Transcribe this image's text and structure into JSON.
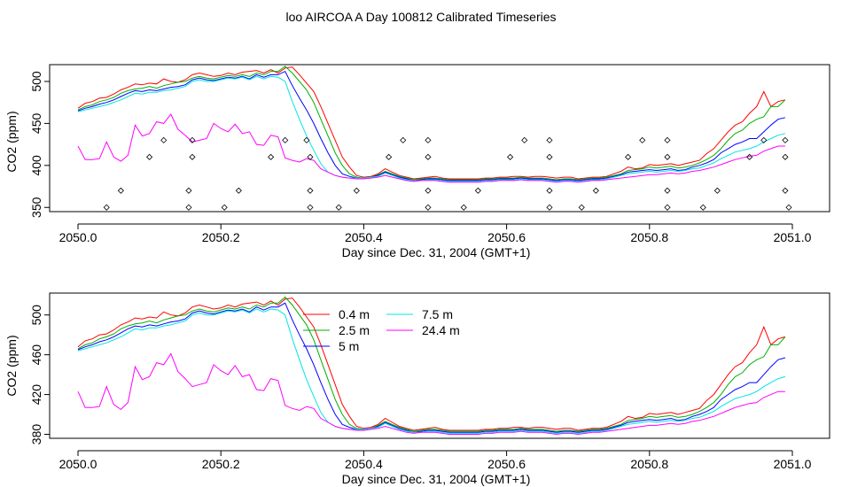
{
  "page_title": "loo AIRCOA A  Day 100812  Calibrated Timeseries",
  "series_colors": {
    "0.4 m": "#ff0000",
    "2.5 m": "#00b000",
    "5 m": "#0000ff",
    "7.5 m": "#00e5e5",
    "24.4 m": "#ff00ff"
  },
  "chart_data": [
    {
      "type": "line",
      "xlabel": "Day since Dec. 31, 2004 (GMT+1)",
      "ylabel": "CO2 (ppm)",
      "xlim": [
        2050.0,
        2051.0
      ],
      "xticks": [
        "2050.0",
        "2050.2",
        "2050.4",
        "2050.6",
        "2050.8",
        "2051.0"
      ],
      "ylim": [
        345,
        520
      ],
      "yticks": [
        "350",
        "400",
        "450",
        "500"
      ],
      "grid": false,
      "x": [
        2050.0,
        2050.01,
        2050.02,
        2050.03,
        2050.04,
        2050.05,
        2050.06,
        2050.07,
        2050.08,
        2050.09,
        2050.1,
        2050.11,
        2050.12,
        2050.13,
        2050.14,
        2050.15,
        2050.16,
        2050.17,
        2050.18,
        2050.19,
        2050.2,
        2050.21,
        2050.22,
        2050.23,
        2050.24,
        2050.25,
        2050.26,
        2050.27,
        2050.28,
        2050.29,
        2050.3,
        2050.31,
        2050.32,
        2050.33,
        2050.34,
        2050.35,
        2050.36,
        2050.37,
        2050.38,
        2050.39,
        2050.4,
        2050.41,
        2050.42,
        2050.43,
        2050.44,
        2050.45,
        2050.46,
        2050.47,
        2050.48,
        2050.49,
        2050.5,
        2050.51,
        2050.52,
        2050.53,
        2050.54,
        2050.55,
        2050.56,
        2050.57,
        2050.58,
        2050.59,
        2050.6,
        2050.61,
        2050.62,
        2050.63,
        2050.64,
        2050.65,
        2050.66,
        2050.67,
        2050.68,
        2050.69,
        2050.7,
        2050.71,
        2050.72,
        2050.73,
        2050.74,
        2050.75,
        2050.76,
        2050.77,
        2050.78,
        2050.79,
        2050.8,
        2050.81,
        2050.82,
        2050.83,
        2050.84,
        2050.85,
        2050.86,
        2050.87,
        2050.88,
        2050.89,
        2050.9,
        2050.91,
        2050.92,
        2050.93,
        2050.94,
        2050.95,
        2050.96,
        2050.97,
        2050.98,
        2050.99
      ],
      "series": [
        {
          "name": "0.4 m",
          "color": "#ff0000",
          "values": [
            468,
            474,
            476,
            480,
            481,
            485,
            490,
            493,
            497,
            496,
            498,
            497,
            503,
            500,
            499,
            502,
            508,
            510,
            508,
            506,
            507,
            510,
            508,
            511,
            512,
            513,
            510,
            514,
            510,
            516,
            517,
            508,
            498,
            488,
            470,
            450,
            430,
            410,
            398,
            388,
            386,
            387,
            390,
            396,
            392,
            388,
            386,
            384,
            385,
            386,
            387,
            385,
            384,
            384,
            384,
            384,
            384,
            385,
            385,
            386,
            386,
            387,
            387,
            386,
            387,
            387,
            386,
            385,
            386,
            386,
            384,
            385,
            386,
            386,
            387,
            390,
            393,
            398,
            396,
            397,
            401,
            400,
            401,
            402,
            400,
            402,
            404,
            406,
            414,
            420,
            430,
            440,
            448,
            452,
            462,
            470,
            488,
            470,
            476,
            478
          ]
        },
        {
          "name": "2.5 m",
          "color": "#00b000",
          "values": [
            466,
            470,
            472,
            476,
            478,
            481,
            486,
            489,
            491,
            492,
            494,
            492,
            495,
            497,
            499,
            500,
            504,
            506,
            504,
            503,
            505,
            507,
            506,
            508,
            506,
            510,
            508,
            512,
            512,
            518,
            510,
            500,
            490,
            475,
            455,
            435,
            415,
            400,
            390,
            386,
            385,
            386,
            389,
            393,
            390,
            387,
            385,
            383,
            384,
            385,
            385,
            384,
            383,
            383,
            383,
            383,
            383,
            384,
            384,
            385,
            385,
            385,
            386,
            385,
            385,
            385,
            384,
            383,
            384,
            384,
            383,
            384,
            385,
            385,
            386,
            388,
            390,
            394,
            395,
            396,
            398,
            397,
            398,
            399,
            397,
            398,
            400,
            403,
            407,
            412,
            420,
            430,
            438,
            442,
            450,
            455,
            458,
            470,
            470,
            478
          ]
        },
        {
          "name": "5 m",
          "color": "#0000ff",
          "values": [
            465,
            468,
            470,
            473,
            475,
            478,
            482,
            486,
            489,
            488,
            490,
            489,
            491,
            493,
            494,
            496,
            502,
            504,
            502,
            501,
            503,
            505,
            504,
            506,
            503,
            508,
            505,
            508,
            508,
            512,
            495,
            480,
            466,
            450,
            432,
            415,
            400,
            390,
            387,
            385,
            385,
            386,
            388,
            392,
            389,
            386,
            384,
            382,
            383,
            384,
            384,
            383,
            382,
            382,
            382,
            382,
            382,
            383,
            383,
            384,
            384,
            384,
            385,
            384,
            384,
            384,
            383,
            382,
            383,
            383,
            382,
            383,
            384,
            384,
            385,
            387,
            389,
            392,
            393,
            394,
            395,
            394,
            395,
            396,
            394,
            395,
            398,
            400,
            403,
            407,
            415,
            420,
            425,
            428,
            432,
            432,
            440,
            448,
            455,
            457
          ]
        },
        {
          "name": "7.5 m",
          "color": "#00e5e5",
          "values": [
            464,
            466,
            468,
            470,
            472,
            475,
            478,
            482,
            486,
            485,
            487,
            487,
            489,
            490,
            492,
            494,
            500,
            502,
            500,
            500,
            502,
            504,
            503,
            505,
            502,
            506,
            503,
            506,
            505,
            500,
            476,
            455,
            435,
            418,
            402,
            392,
            388,
            386,
            385,
            385,
            385,
            386,
            387,
            391,
            388,
            385,
            383,
            382,
            382,
            383,
            383,
            382,
            381,
            381,
            381,
            381,
            381,
            382,
            382,
            383,
            383,
            383,
            384,
            383,
            383,
            383,
            382,
            381,
            382,
            382,
            381,
            382,
            383,
            383,
            384,
            386,
            388,
            390,
            391,
            392,
            393,
            392,
            393,
            394,
            393,
            394,
            396,
            397,
            400,
            403,
            408,
            412,
            416,
            418,
            420,
            423,
            428,
            432,
            436,
            438
          ]
        },
        {
          "name": "24.4 m",
          "color": "#ff00ff",
          "values": [
            423,
            407,
            407,
            408,
            428,
            410,
            405,
            412,
            448,
            435,
            438,
            452,
            450,
            461,
            443,
            436,
            428,
            430,
            432,
            450,
            444,
            440,
            449,
            438,
            440,
            425,
            424,
            436,
            434,
            409,
            406,
            404,
            408,
            406,
            396,
            392,
            388,
            386,
            385,
            384,
            384,
            385,
            386,
            388,
            386,
            384,
            382,
            381,
            382,
            382,
            382,
            381,
            380,
            380,
            380,
            380,
            380,
            381,
            381,
            382,
            382,
            382,
            383,
            382,
            382,
            382,
            381,
            380,
            381,
            381,
            380,
            381,
            382,
            382,
            383,
            384,
            385,
            386,
            387,
            388,
            389,
            389,
            390,
            391,
            390,
            391,
            393,
            394,
            396,
            398,
            401,
            404,
            407,
            409,
            411,
            412,
            417,
            420,
            423,
            423
          ]
        }
      ],
      "markers": [
        {
          "x": 2050.04,
          "y": 350
        },
        {
          "x": 2050.06,
          "y": 370
        },
        {
          "x": 2050.1,
          "y": 410
        },
        {
          "x": 2050.12,
          "y": 430
        },
        {
          "x": 2050.155,
          "y": 350
        },
        {
          "x": 2050.155,
          "y": 370
        },
        {
          "x": 2050.16,
          "y": 410
        },
        {
          "x": 2050.16,
          "y": 430
        },
        {
          "x": 2050.205,
          "y": 350
        },
        {
          "x": 2050.225,
          "y": 370
        },
        {
          "x": 2050.27,
          "y": 410
        },
        {
          "x": 2050.29,
          "y": 430
        },
        {
          "x": 2050.32,
          "y": 430
        },
        {
          "x": 2050.325,
          "y": 410
        },
        {
          "x": 2050.325,
          "y": 370
        },
        {
          "x": 2050.325,
          "y": 350
        },
        {
          "x": 2050.365,
          "y": 350
        },
        {
          "x": 2050.39,
          "y": 370
        },
        {
          "x": 2050.435,
          "y": 410
        },
        {
          "x": 2050.455,
          "y": 430
        },
        {
          "x": 2050.49,
          "y": 430
        },
        {
          "x": 2050.49,
          "y": 410
        },
        {
          "x": 2050.49,
          "y": 370
        },
        {
          "x": 2050.49,
          "y": 350
        },
        {
          "x": 2050.54,
          "y": 350
        },
        {
          "x": 2050.56,
          "y": 370
        },
        {
          "x": 2050.605,
          "y": 410
        },
        {
          "x": 2050.625,
          "y": 430
        },
        {
          "x": 2050.66,
          "y": 430
        },
        {
          "x": 2050.66,
          "y": 410
        },
        {
          "x": 2050.66,
          "y": 370
        },
        {
          "x": 2050.66,
          "y": 350
        },
        {
          "x": 2050.705,
          "y": 350
        },
        {
          "x": 2050.725,
          "y": 370
        },
        {
          "x": 2050.77,
          "y": 410
        },
        {
          "x": 2050.79,
          "y": 430
        },
        {
          "x": 2050.825,
          "y": 430
        },
        {
          "x": 2050.825,
          "y": 410
        },
        {
          "x": 2050.825,
          "y": 370
        },
        {
          "x": 2050.825,
          "y": 350
        },
        {
          "x": 2050.875,
          "y": 350
        },
        {
          "x": 2050.895,
          "y": 370
        },
        {
          "x": 2050.94,
          "y": 410
        },
        {
          "x": 2050.96,
          "y": 430
        },
        {
          "x": 2050.99,
          "y": 430
        },
        {
          "x": 2050.99,
          "y": 410
        },
        {
          "x": 2050.99,
          "y": 370
        },
        {
          "x": 2050.995,
          "y": 350
        }
      ]
    },
    {
      "type": "line",
      "xlabel": "Day since Dec. 31, 2004 (GMT+1)",
      "ylabel": "CO2 (ppm)",
      "xlim": [
        2050.0,
        2051.0
      ],
      "xticks": [
        "2050.0",
        "2050.2",
        "2050.4",
        "2050.6",
        "2050.8",
        "2051.0"
      ],
      "ylim": [
        376,
        522
      ],
      "yticks": [
        "380",
        "420",
        "460",
        "500"
      ],
      "grid": false,
      "legend": {
        "placement": "top-center",
        "entries": [
          "0.4 m",
          "2.5 m",
          "5 m",
          "7.5 m",
          "24.4 m"
        ]
      },
      "note": "same series as panel 1"
    }
  ]
}
